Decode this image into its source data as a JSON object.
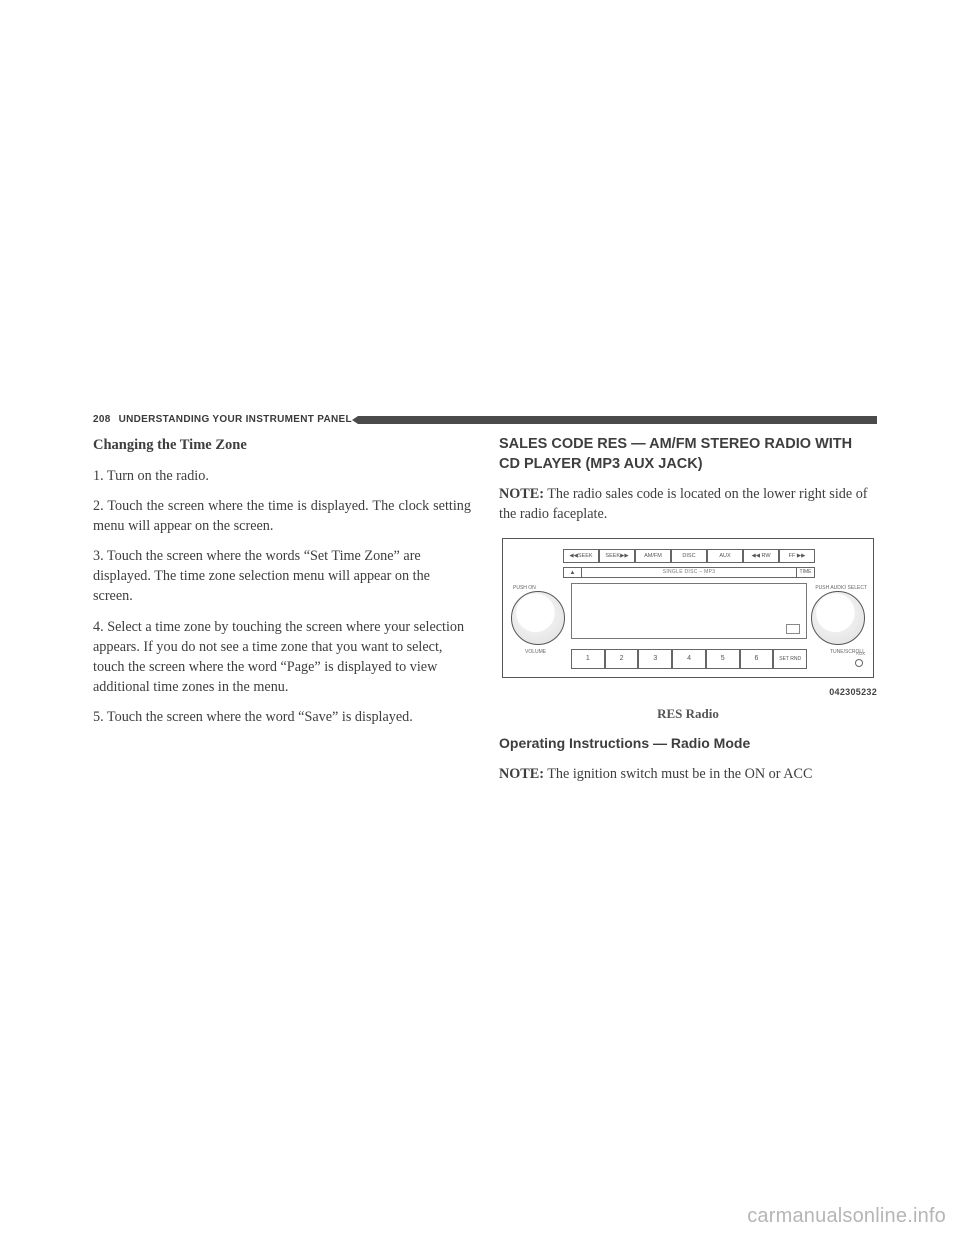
{
  "header": {
    "page_number": "208",
    "section": "UNDERSTANDING YOUR INSTRUMENT PANEL"
  },
  "left": {
    "heading": "Changing the Time Zone",
    "p1": "1. Turn on the radio.",
    "p2": "2. Touch the screen where the time is displayed. The clock setting menu will appear on the screen.",
    "p3": "3. Touch the screen where the words “Set Time Zone” are displayed. The time zone selection menu will appear on the screen.",
    "p4": "4. Select a time zone by touching the screen where your selection appears. If you do not see a time zone that you want to select, touch the screen where the word “Page” is displayed to view additional time zones in the menu.",
    "p5": "5. Touch the screen where the word “Save” is displayed."
  },
  "right": {
    "heading": "SALES CODE RES — AM/FM STEREO RADIO WITH CD PLAYER (MP3 AUX JACK)",
    "note_label": "NOTE:",
    "note_text": " The radio sales code is located on the lower right side of the radio faceplate.",
    "figure_number": "042305232",
    "figure_caption": "RES Radio",
    "subheading": "Operating Instructions — Radio Mode",
    "note2_label": "NOTE:",
    "note2_text": " The ignition switch must be in the ON or ACC"
  },
  "radio": {
    "top_buttons": [
      "◀◀SEEK",
      "SEEK▶▶",
      "AM/FM",
      "DISC",
      "AUX",
      "◀◀ RW",
      "FF ▶▶"
    ],
    "eject_symbol": "▲",
    "slot_text": "SINGLE DISC – MP3",
    "time_btn": "TIME",
    "left_knob_top": "PUSH ON",
    "left_knob_bottom": "VOLUME",
    "right_knob_top": "PUSH AUDIO SELECT",
    "right_knob_bottom": "TUNE/SCROLL",
    "presets": [
      "1",
      "2",
      "3",
      "4",
      "5",
      "6",
      "SET\nRND"
    ],
    "aux_label": "AUX"
  },
  "watermark": "carmanualsonline.info"
}
